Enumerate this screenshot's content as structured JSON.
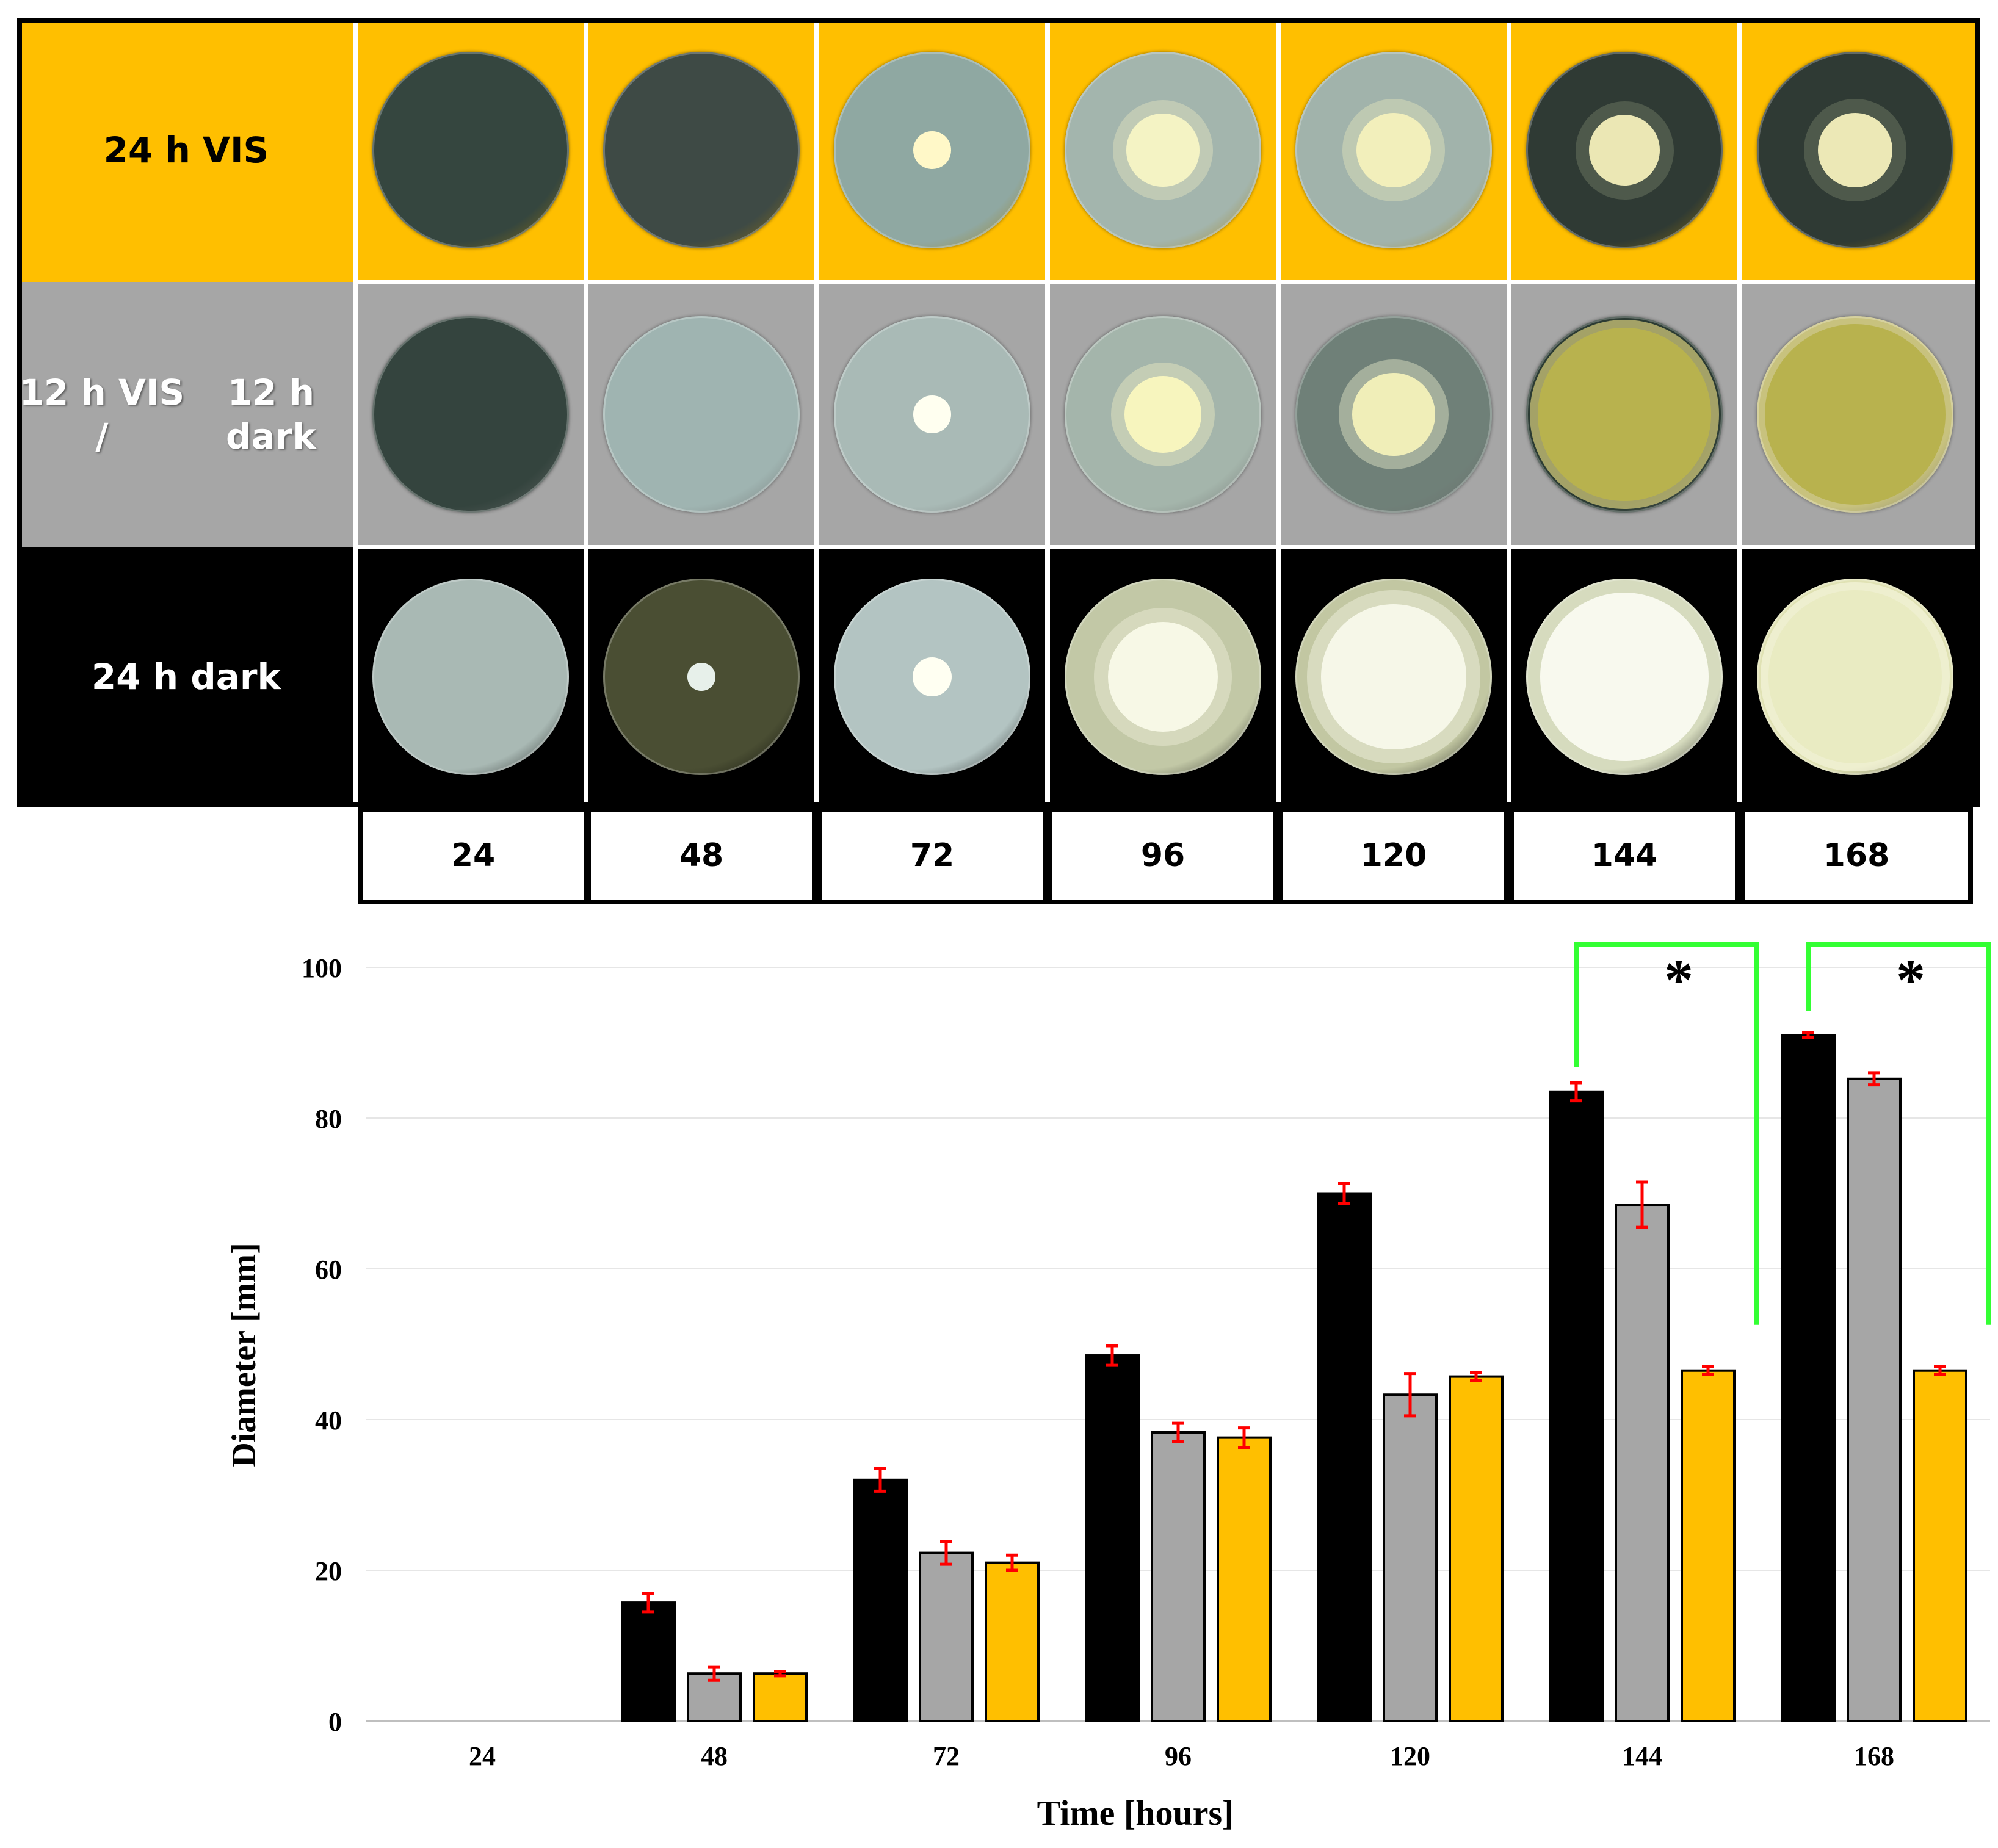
{
  "plate_panel": {
    "rows": [
      {
        "label_line1": "24 h VIS",
        "label_line2": "",
        "bg": "#FFBF00",
        "text_color": "#000000"
      },
      {
        "label_line1": "12 h VIS /",
        "label_line2": "12 h dark",
        "bg": "#A6A6A6",
        "text_color": "#FFFFFF"
      },
      {
        "label_line1": "24 h dark",
        "label_line2": "",
        "bg": "#000000",
        "text_color": "#FFFFFF"
      }
    ],
    "time_labels": [
      "24",
      "48",
      "72",
      "96",
      "120",
      "144",
      "168"
    ]
  },
  "chart_data": {
    "type": "bar",
    "title": "",
    "xlabel": "Time [hours]",
    "ylabel": "Diameter [mm]",
    "categories": [
      "24",
      "48",
      "72",
      "96",
      "120",
      "144",
      "168"
    ],
    "ylim": [
      0,
      100
    ],
    "yticks": [
      "0",
      "20",
      "40",
      "60",
      "80",
      "100"
    ],
    "grid": true,
    "series": [
      {
        "name": "24 h dark",
        "color": "#000000",
        "values": [
          0,
          15.7,
          32,
          48.5,
          70,
          83.5,
          91
        ],
        "errors": [
          0,
          1.2,
          1.5,
          1.3,
          1.3,
          1.2,
          0.3
        ]
      },
      {
        "name": "12 h VIS / 12 h dark",
        "color": "#A6A6A6",
        "values": [
          0,
          6.3,
          22.3,
          38.3,
          43.3,
          68.5,
          85.2
        ],
        "errors": [
          0,
          0.9,
          1.5,
          1.2,
          2.8,
          3.0,
          0.8
        ]
      },
      {
        "name": "24 h VIS",
        "color": "#FFBF00",
        "values": [
          0,
          6.3,
          21,
          37.6,
          45.7,
          46.5,
          46.5
        ],
        "errors": [
          0,
          0.3,
          1.0,
          1.3,
          0.5,
          0.5,
          0.5
        ]
      }
    ],
    "significance": [
      {
        "category": "144",
        "label": "*",
        "bracket_color": "#33FF33"
      },
      {
        "category": "168",
        "label": "*",
        "bracket_color": "#33FF33"
      }
    ],
    "error_bar_color": "#FF0000"
  }
}
